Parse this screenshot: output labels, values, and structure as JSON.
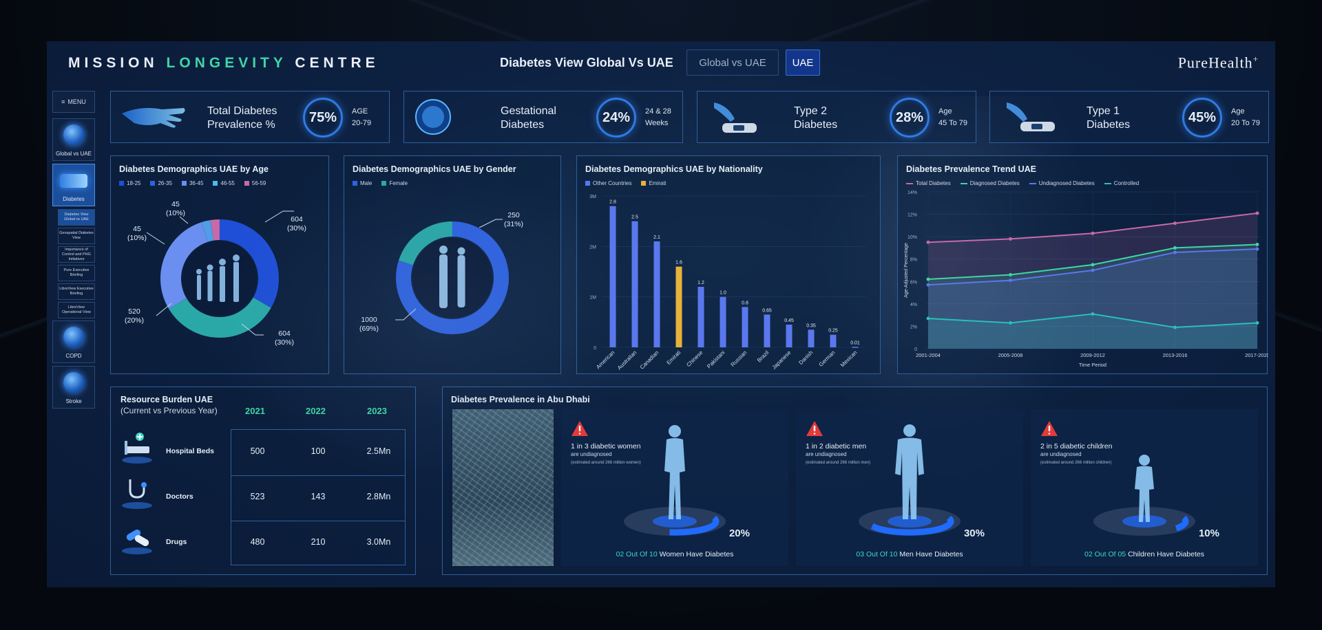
{
  "header": {
    "brand_a": "MISSION",
    "brand_b": "LONGEVITY",
    "brand_c": "CENTRE",
    "view_title": "Diabetes View Global Vs UAE",
    "seg_global": "Global vs UAE",
    "seg_uae": "UAE",
    "logo": "PureHealth",
    "logo_plus": "+"
  },
  "nav": {
    "menu": "MENU",
    "global": "Global vs UAE",
    "diabetes": "Diabetes",
    "sub": [
      "Diabetes View Global vs UAE",
      "Geospatial Diabetes View",
      "Importance of Control and PHG Initiatives",
      "Pure Executive Briefing",
      "LibreView Executive Briefing",
      "LibreView Operational View"
    ],
    "copd": "COPD",
    "stroke": "Stroke"
  },
  "kpis": [
    {
      "name1": "Total Diabetes",
      "name2": "Prevalence %",
      "pct": "75%",
      "m1": "AGE",
      "m2": "20-79"
    },
    {
      "name1": "Gestational",
      "name2": "Diabetes",
      "pct": "24%",
      "m1": "24 & 28",
      "m2": "Weeks"
    },
    {
      "name1": "Type 2",
      "name2": "Diabetes",
      "pct": "28%",
      "m1": "Age",
      "m2": "45 To 79"
    },
    {
      "name1": "Type 1",
      "name2": "Diabetes",
      "pct": "45%",
      "m1": "Age",
      "m2": "20 To 79"
    }
  ],
  "age": {
    "title": "Diabetes Demographics UAE by Age",
    "legend": [
      "18-25",
      "26-35",
      "36-45",
      "46-55",
      "56-59"
    ],
    "labels": [
      {
        "v": "45",
        "p": "(10%)"
      },
      {
        "v": "604",
        "p": "(30%)"
      },
      {
        "v": "45",
        "p": "(10%)"
      },
      {
        "v": "520",
        "p": "(20%)"
      },
      {
        "v": "604",
        "p": "(30%)"
      }
    ]
  },
  "gender": {
    "title": "Diabetes Demographics UAE by Gender",
    "legend": [
      "Male",
      "Female"
    ],
    "labels": [
      {
        "v": "250",
        "p": "(31%)"
      },
      {
        "v": "1000",
        "p": "(69%)"
      }
    ]
  },
  "nationality": {
    "title": "Diabetes Demographics UAE by Nationality",
    "legend": [
      "Other Countries",
      "Emirati"
    ]
  },
  "trend": {
    "title": "Diabetes Prevalence Trend UAE",
    "legend": [
      "Total Diabetes",
      "Diagnosed Diabetes",
      "Undiagnosed Diabetes",
      "Controlled"
    ]
  },
  "resource": {
    "title1": "Resource Burden UAE",
    "title2": "(Current vs Previous Year)",
    "years": [
      "2021",
      "2022",
      "2023"
    ],
    "rows": [
      {
        "label": "Hospital Beds",
        "vals": [
          "500",
          "100",
          "2.5Mn"
        ]
      },
      {
        "label": "Doctors",
        "vals": [
          "523",
          "143",
          "2.8Mn"
        ]
      },
      {
        "label": "Drugs",
        "vals": [
          "480",
          "210",
          "3.0Mn"
        ]
      }
    ]
  },
  "abudhabi": {
    "title": "Diabetes Prevalence in Abu Dhabi",
    "cards": [
      {
        "head": "1 in 3 diabetic women",
        "sub": "are undiagnosed",
        "note": "(estimated around 266 million women)",
        "pct": "20%",
        "foot_a": "02 Out Of 10",
        "foot_b": " Women Have Diabetes",
        "fill": 0.2
      },
      {
        "head": "1 in 2 diabetic men",
        "sub": "are undiagnosed",
        "note": "(estimated around 266 million men)",
        "pct": "30%",
        "foot_a": "03 Out Of 10",
        "foot_b": " Men Have Diabetes",
        "fill": 0.3
      },
      {
        "head": "2 in 5 diabetic children",
        "sub": "are undiagnosed",
        "note": "(estimated around 266 million children)",
        "pct": "10%",
        "foot_a": "02 Out Of 05",
        "foot_b": " Children Have Diabetes",
        "fill": 0.1
      }
    ]
  },
  "colors": {
    "accent_green": "#3fd6a6",
    "age_series": [
      "#1f4fd6",
      "#2f62e0",
      "#6a8ff0",
      "#4fb8f0",
      "#c86aa8"
    ],
    "male": "#2f62e0",
    "female": "#2aa8a8",
    "other_countries": "#5a78ee",
    "emirati": "#e8b23a",
    "trend": [
      "#c86aa8",
      "#3fd6a6",
      "#5a78ee",
      "#2ac0b8"
    ]
  },
  "chart_data": [
    {
      "type": "pie",
      "title": "Diabetes Demographics UAE by Age",
      "categories": [
        "18-25",
        "26-35",
        "36-45",
        "46-55",
        "56-59"
      ],
      "values": [
        604,
        604,
        520,
        45,
        45
      ]
    },
    {
      "type": "pie",
      "title": "Diabetes Demographics UAE by Gender",
      "categories": [
        "Male",
        "Female"
      ],
      "values": [
        1000,
        250
      ]
    },
    {
      "type": "bar",
      "title": "Diabetes Demographics UAE by Nationality",
      "categories": [
        "American",
        "Australian",
        "Canadian",
        "Emirati",
        "Chinese",
        "Pakistani",
        "Russian",
        "Brazil",
        "Japanese",
        "Danish",
        "German",
        "Mexican"
      ],
      "values": [
        2.8,
        2.5,
        2.1,
        1.6,
        1.2,
        1.0,
        0.8,
        0.65,
        0.45,
        0.35,
        0.25,
        0.01
      ],
      "value_labels": [
        "2.8",
        "2.5",
        "2.1",
        "1.6",
        "1.2",
        "1.0",
        "0.8",
        "0.65",
        "0.45",
        "0.35",
        "0.25",
        "0.01"
      ],
      "highlight": "Emirati",
      "yticks": [
        "0",
        "1M",
        "2M",
        "3M"
      ],
      "ylim": [
        0,
        3
      ]
    },
    {
      "type": "area",
      "title": "Diabetes Prevalence Trend UAE",
      "x": [
        "2001-2004",
        "2005-2008",
        "2009-2012",
        "2013-2016",
        "2017-2020"
      ],
      "xlabel": "Time Period",
      "ylabel": "Age-Adjusted Percentage",
      "yticks": [
        "0",
        "2%",
        "4%",
        "6%",
        "8%",
        "10%",
        "12%",
        "14%"
      ],
      "ylim": [
        0,
        14
      ],
      "series": [
        {
          "name": "Total Diabetes",
          "values": [
            9.5,
            9.8,
            10.3,
            11.2,
            12.1
          ]
        },
        {
          "name": "Diagnosed Diabetes",
          "values": [
            6.2,
            6.6,
            7.5,
            9.0,
            9.3
          ]
        },
        {
          "name": "Undiagnosed Diabetes",
          "values": [
            5.7,
            6.1,
            7.0,
            8.6,
            8.9
          ]
        },
        {
          "name": "Controlled",
          "values": [
            2.7,
            2.3,
            3.1,
            1.9,
            2.3
          ]
        }
      ]
    }
  ]
}
